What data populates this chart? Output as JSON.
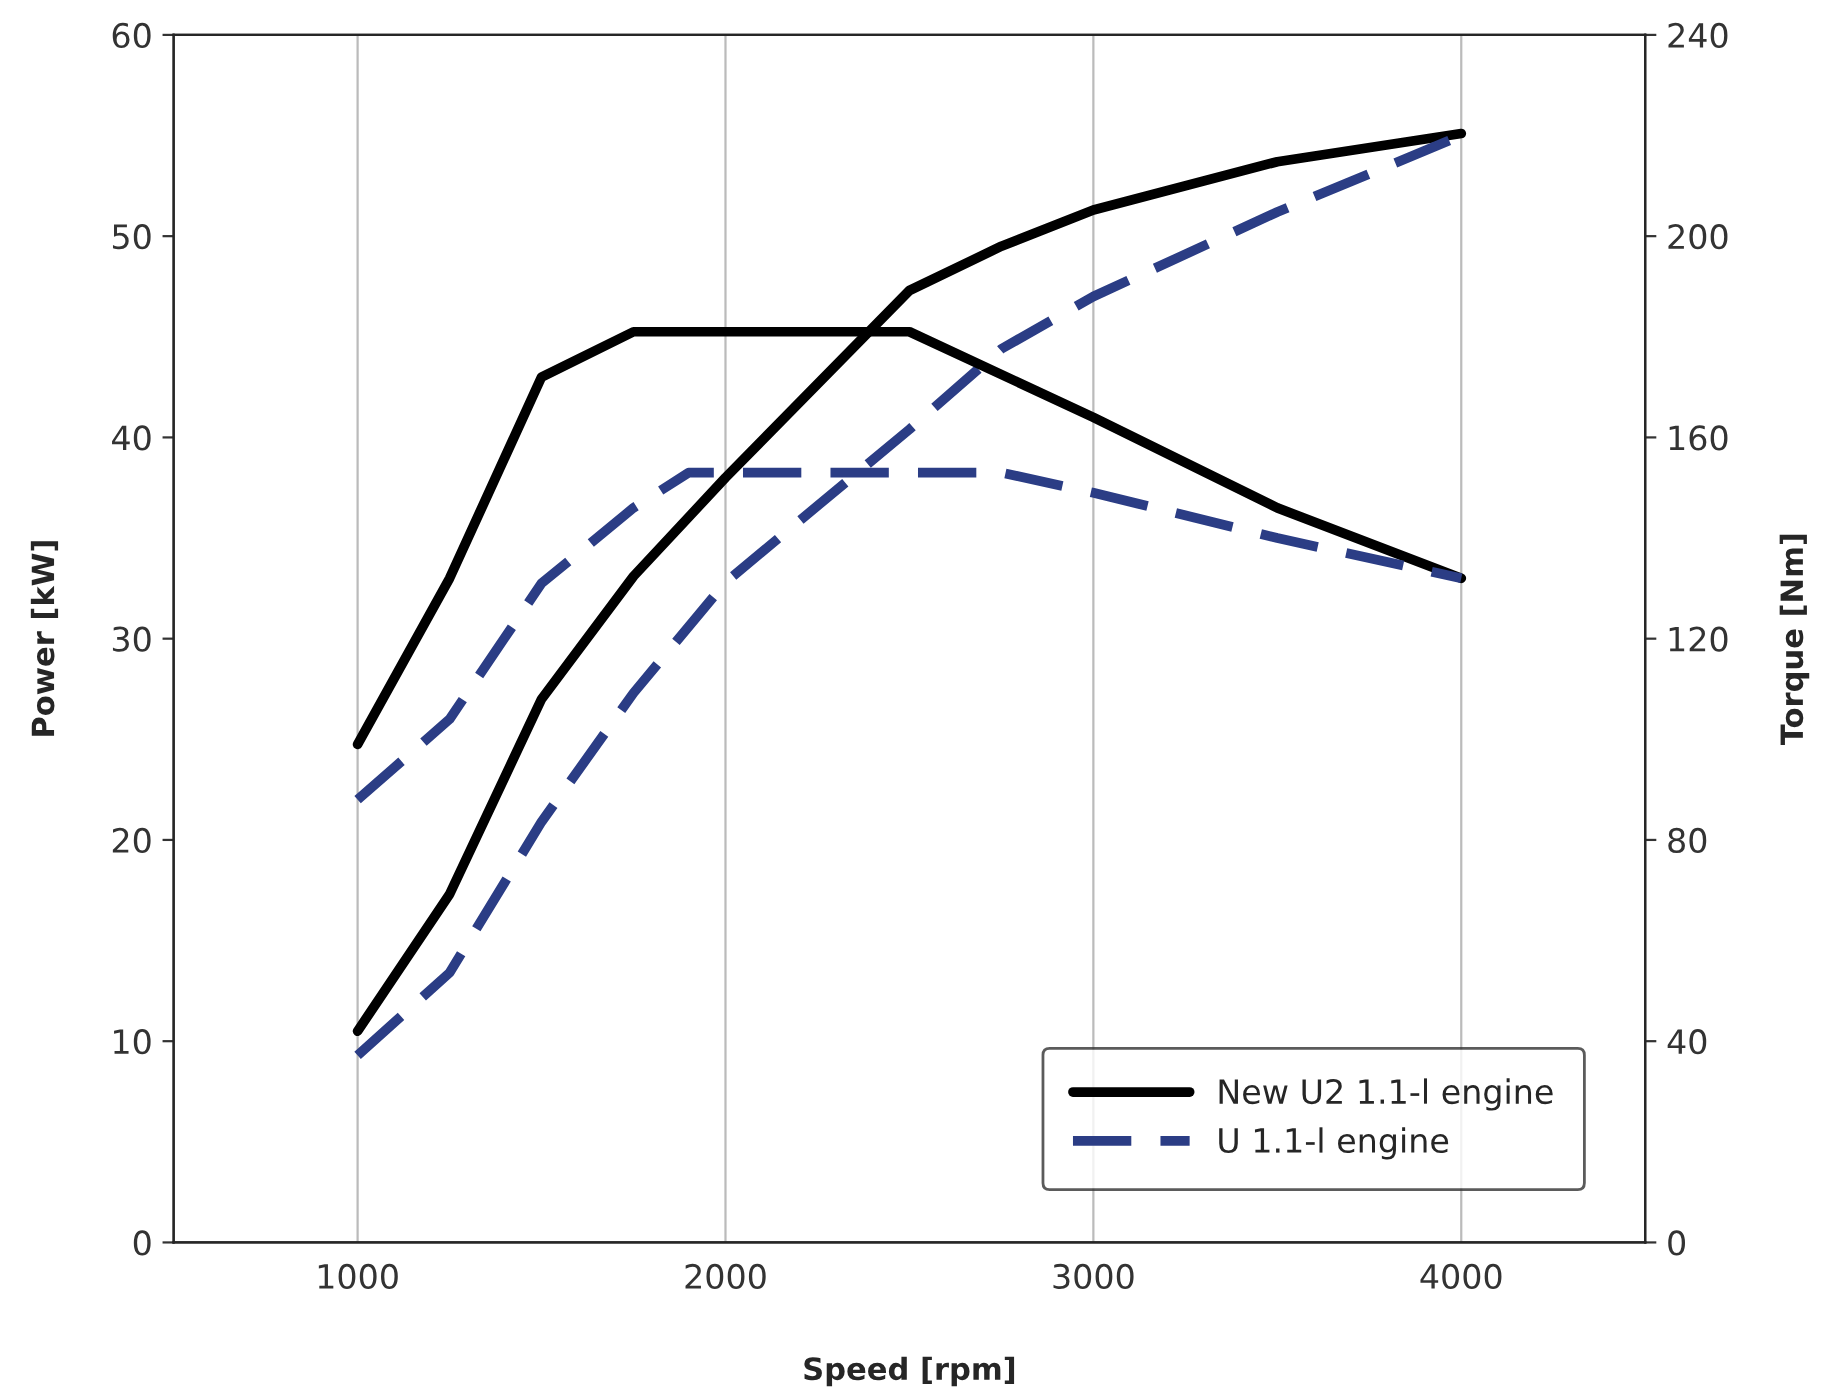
{
  "chart_data": {
    "type": "line",
    "xlabel": "Speed [rpm]",
    "ylabel": "Power [kW]",
    "y2label": "Torque [Nm]",
    "xlim": [
      500,
      4500
    ],
    "xticks": [
      1000,
      2000,
      3000,
      4000
    ],
    "ylim": [
      0,
      60
    ],
    "yticks": [
      0,
      10,
      20,
      30,
      40,
      50,
      60
    ],
    "y2lim": [
      0,
      240
    ],
    "y2ticks": [
      0,
      40,
      80,
      120,
      160,
      200,
      240
    ],
    "grid": "x",
    "legend": "bottom right",
    "series": [
      {
        "name": "New U2 1.1-l engine",
        "color": "#000000",
        "line_style": "solid",
        "x": [
          1000,
          1250,
          1500,
          1750,
          2000,
          2500,
          2750,
          3000,
          3500,
          4000
        ],
        "values": [
          10.5,
          17.3,
          27,
          33.1,
          38,
          47.3,
          49.5,
          51.3,
          53.7,
          55.1
        ]
      },
      {
        "name": "U 1.1-l engine",
        "color": "#2b3d85",
        "line_style": "dashed",
        "x": [
          1000,
          1250,
          1500,
          1750,
          2000,
          2500,
          2750,
          3000,
          3500,
          4000
        ],
        "values": [
          9.3,
          13.4,
          20.9,
          27.3,
          32.8,
          40.4,
          44.4,
          47,
          51.2,
          55
        ]
      },
      {
        "color": "#000000",
        "line_style": "solid",
        "axis": "y2",
        "x": [
          1000,
          1250,
          1500,
          1750,
          2500,
          3000,
          3500,
          4000
        ],
        "values": [
          99,
          132,
          172,
          181,
          181,
          164,
          146,
          132
        ]
      },
      {
        "color": "#2b3d85",
        "line_style": "dashed",
        "axis": "y2",
        "x": [
          1000,
          1250,
          1500,
          1750,
          1900,
          2500,
          2750,
          3000,
          3500,
          4000
        ],
        "values": [
          88,
          104,
          131,
          146,
          153,
          153,
          153,
          149,
          140,
          132
        ]
      }
    ]
  }
}
